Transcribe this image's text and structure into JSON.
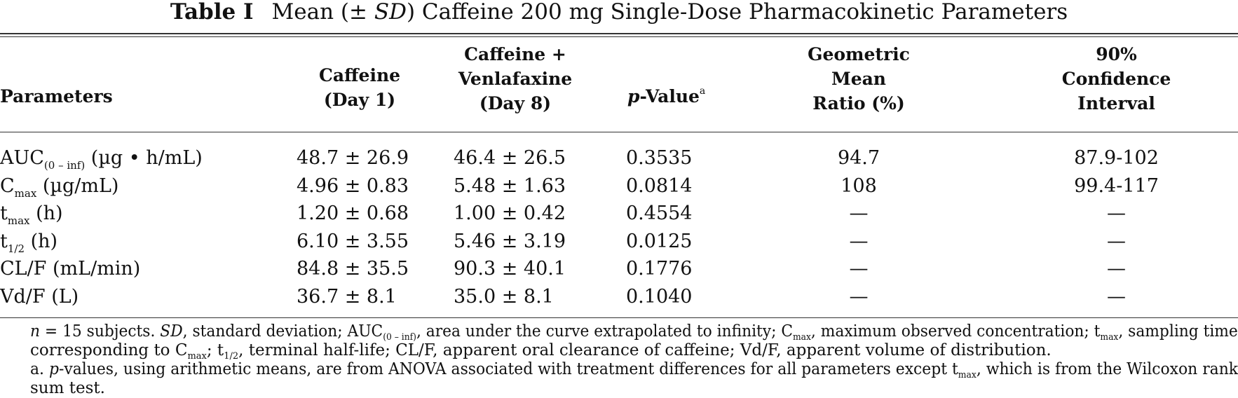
{
  "caption": {
    "label": "Table I",
    "title_pre": "Mean (±",
    "title_sd": "SD",
    "title_post": ") Caffeine 200 mg Single-Dose Pharmacokinetic Parameters"
  },
  "headers": {
    "parameters": "Parameters",
    "caffeine": [
      "Caffeine",
      "(Day 1)"
    ],
    "combo": [
      "Caffeine +",
      "Venlafaxine",
      "(Day 8)"
    ],
    "pvalue_main": "-Value",
    "pvalue_italic": "p",
    "pvalue_sup": "a",
    "gmr": [
      "Geometric",
      "Mean",
      "Ratio (%)"
    ],
    "ci": [
      "90%",
      "Confidence",
      "Interval"
    ]
  },
  "rows": [
    {
      "param": "AUC",
      "sub": "(0 – inf)",
      "unit": " (µg • h/mL)",
      "day1": "48.7 ± 26.9",
      "day8": "46.4 ± 26.5",
      "p": "0.3535",
      "gmr": "94.7",
      "ci": "87.9-102"
    },
    {
      "param": "C",
      "sub": "max",
      "unit": " (µg/mL)",
      "day1": "4.96 ± 0.83",
      "day8": "5.48 ± 1.63",
      "p": "0.0814",
      "gmr": "108",
      "ci": "99.4-117"
    },
    {
      "param": "t",
      "sub": "max",
      "unit": " (h)",
      "day1": "1.20 ± 0.68",
      "day8": "1.00 ± 0.42",
      "p": "0.4554",
      "gmr": "—",
      "ci": "—"
    },
    {
      "param": "t",
      "sub": "1/2",
      "unit": " (h)",
      "day1": "6.10 ± 3.55",
      "day8": "5.46 ± 3.19",
      "p": "0.0125",
      "gmr": "—",
      "ci": "—"
    },
    {
      "param": "CL/F",
      "sub": "",
      "unit": " (mL/min)",
      "day1": "84.8 ± 35.5",
      "day8": "90.3 ± 40.1",
      "p": "0.1776",
      "gmr": "—",
      "ci": "—"
    },
    {
      "param": "Vd/F",
      "sub": "",
      "unit": " (L)",
      "day1": "36.7 ± 8.1",
      "day8": "35.0 ± 8.1",
      "p": "0.1040",
      "gmr": "—",
      "ci": "—"
    }
  ],
  "footnotes": {
    "l1_n": "n",
    "l1_a": " = 15 subjects. ",
    "l1_sd": "SD",
    "l1_b": ", standard deviation; AUC",
    "l1_sub1": "(0 – inf)",
    "l1_c": ", area under the curve extrapolated to infinity; C",
    "l1_sub2": "max",
    "l1_d": ", maximum observed concentration; t",
    "l1_sub3": "max",
    "l1_e": ", sampling time",
    "l2_a": "corresponding to C",
    "l2_sub1": "max",
    "l2_b": "; t",
    "l2_sub2": "1/2",
    "l2_c": ", terminal half-life; CL/F, apparent oral clearance of caffeine; Vd/F, apparent volume of distribution.",
    "l3_a": "a.  ",
    "l3_p": "p",
    "l3_b": "-values, using arithmetic means, are from ANOVA associated with treatment differences for all parameters except t",
    "l3_sub": "max",
    "l3_c": ", which is from the Wilcoxon rank",
    "l4": "sum test."
  }
}
